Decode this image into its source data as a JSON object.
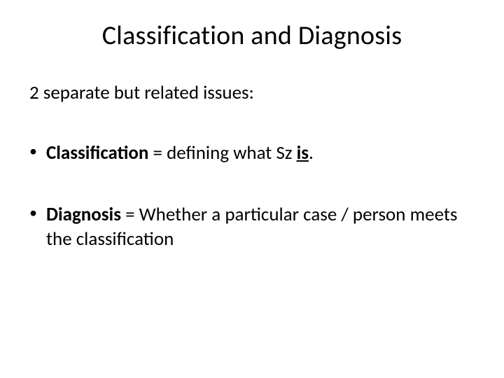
{
  "slide": {
    "title": "Classification and Diagnosis",
    "intro": "2 separate but related issues:",
    "bullets": [
      {
        "spans": [
          {
            "text": "Classification",
            "bold": true,
            "underline": false
          },
          {
            "text": " = defining what Sz ",
            "bold": false,
            "underline": false
          },
          {
            "text": "is",
            "bold": true,
            "underline": true
          },
          {
            "text": ".",
            "bold": false,
            "underline": false
          }
        ]
      },
      {
        "spans": [
          {
            "text": " ",
            "bold": false,
            "underline": false
          },
          {
            "text": "Diagnosis",
            "bold": true,
            "underline": false
          },
          {
            "text": " = Whether a particular case / person meets the classification",
            "bold": false,
            "underline": false
          }
        ]
      }
    ]
  },
  "style": {
    "background_color": "#ffffff",
    "text_color": "#000000",
    "title_fontsize": 38,
    "body_fontsize": 27,
    "font_family": "Calibri"
  }
}
